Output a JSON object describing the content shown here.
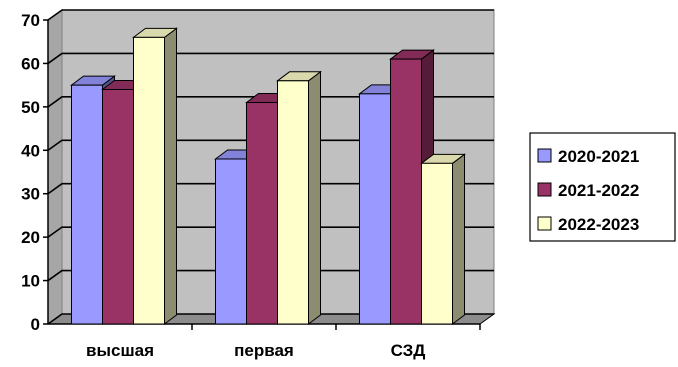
{
  "chart_data": {
    "type": "bar",
    "categories": [
      "высшая",
      "первая",
      "СЗД"
    ],
    "series": [
      {
        "name": "2020-2021",
        "values": [
          55,
          38,
          53
        ],
        "color": "#9999FF"
      },
      {
        "name": "2021-2022",
        "values": [
          54,
          51,
          61
        ],
        "color": "#993366"
      },
      {
        "name": "2022-2023",
        "values": [
          66,
          56,
          37
        ],
        "color": "#FFFFCC"
      }
    ],
    "ylim": [
      0,
      70
    ],
    "yticks": [
      0,
      10,
      20,
      30,
      40,
      50,
      60,
      70
    ],
    "grid": true,
    "style": "3d-clustered-column",
    "legend_position": "right",
    "plot_background": "#C0C0C0"
  }
}
